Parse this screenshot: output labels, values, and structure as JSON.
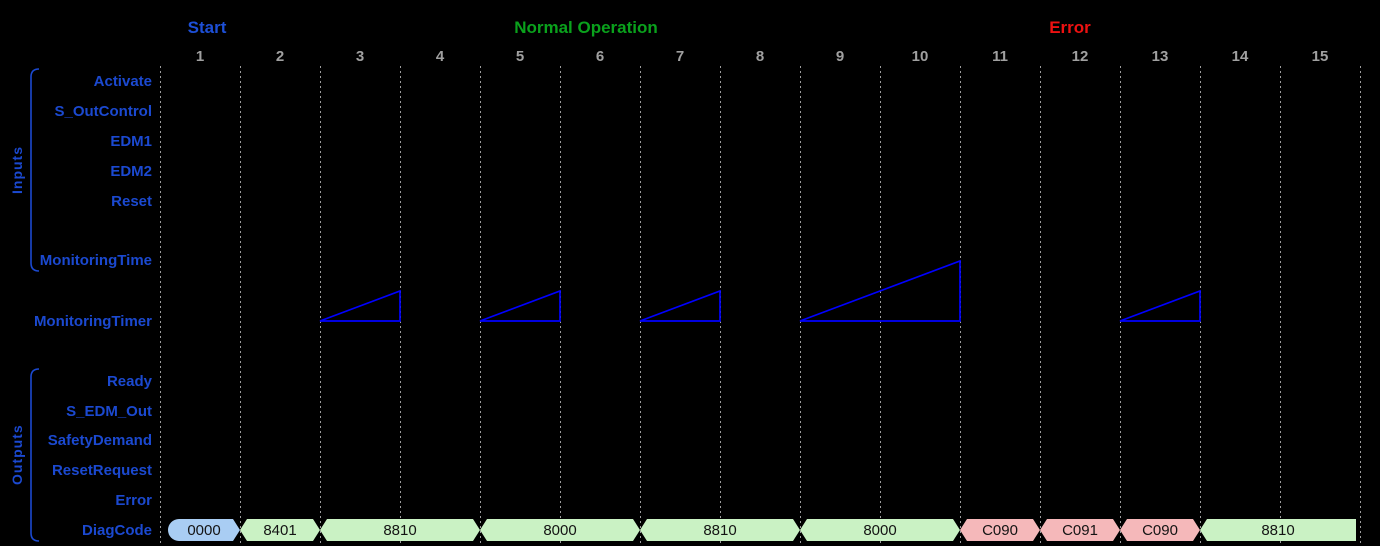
{
  "diagram": {
    "title_phases": [
      {
        "label": "Start",
        "color": "#1d4fd6",
        "from_col": 1,
        "to_col": 1
      },
      {
        "label": "Normal Operation",
        "color": "#0aa11c",
        "from_col": 2,
        "to_col": 10
      },
      {
        "label": "Error",
        "color": "#ee1111",
        "from_col": 11,
        "to_col": 13
      }
    ],
    "columns": [
      "1",
      "2",
      "3",
      "4",
      "5",
      "6",
      "7",
      "8",
      "9",
      "10",
      "11",
      "12",
      "13",
      "14",
      "15"
    ],
    "inputs": {
      "group_label": "Inputs",
      "signals": [
        "Activate",
        "S_OutControl",
        "EDM1",
        "EDM2",
        "Reset",
        "MonitoringTime"
      ]
    },
    "timer_row_label": "MonitoringTimer",
    "outputs": {
      "group_label": "Outputs",
      "signals": [
        "Ready",
        "S_EDM_Out",
        "SafetyDemand",
        "ResetRequest",
        "Error",
        "DiagCode"
      ]
    }
  },
  "chart_data": {
    "type": "timing-diagram",
    "x_columns": [
      1,
      2,
      3,
      4,
      5,
      6,
      7,
      8,
      9,
      10,
      11,
      12,
      13,
      14,
      15
    ],
    "timer_ramps": [
      {
        "from_col": 3,
        "to_col": 3
      },
      {
        "from_col": 5,
        "to_col": 5
      },
      {
        "from_col": 7,
        "to_col": 7
      },
      {
        "from_col": 9,
        "to_col": 10
      },
      {
        "from_col": 13,
        "to_col": 13
      }
    ],
    "diagcode_segments": [
      {
        "value": "0000",
        "from_col": 1,
        "to_col": 1,
        "kind": "init"
      },
      {
        "value": "8401",
        "from_col": 2,
        "to_col": 2,
        "kind": "normal"
      },
      {
        "value": "8810",
        "from_col": 3,
        "to_col": 4,
        "kind": "normal"
      },
      {
        "value": "8000",
        "from_col": 5,
        "to_col": 6,
        "kind": "normal"
      },
      {
        "value": "8810",
        "from_col": 7,
        "to_col": 8,
        "kind": "normal"
      },
      {
        "value": "8000",
        "from_col": 9,
        "to_col": 10,
        "kind": "normal"
      },
      {
        "value": "C090",
        "from_col": 11,
        "to_col": 11,
        "kind": "error"
      },
      {
        "value": "C091",
        "from_col": 12,
        "to_col": 12,
        "kind": "error"
      },
      {
        "value": "C090",
        "from_col": 13,
        "to_col": 13,
        "kind": "error"
      },
      {
        "value": "8810",
        "from_col": 14,
        "to_col": 15,
        "kind": "normal"
      }
    ]
  },
  "colors": {
    "background": "#000000",
    "signal_label_blue": "#1b49d0",
    "grid_gray": "#9d9d9d",
    "column_number_gray": "#a0a0a0",
    "timer_ramp_blue": "#0000ff",
    "segment_fill": {
      "init": "#a9cdf3",
      "normal": "#caf2c4",
      "error": "#f5b8ba"
    }
  }
}
